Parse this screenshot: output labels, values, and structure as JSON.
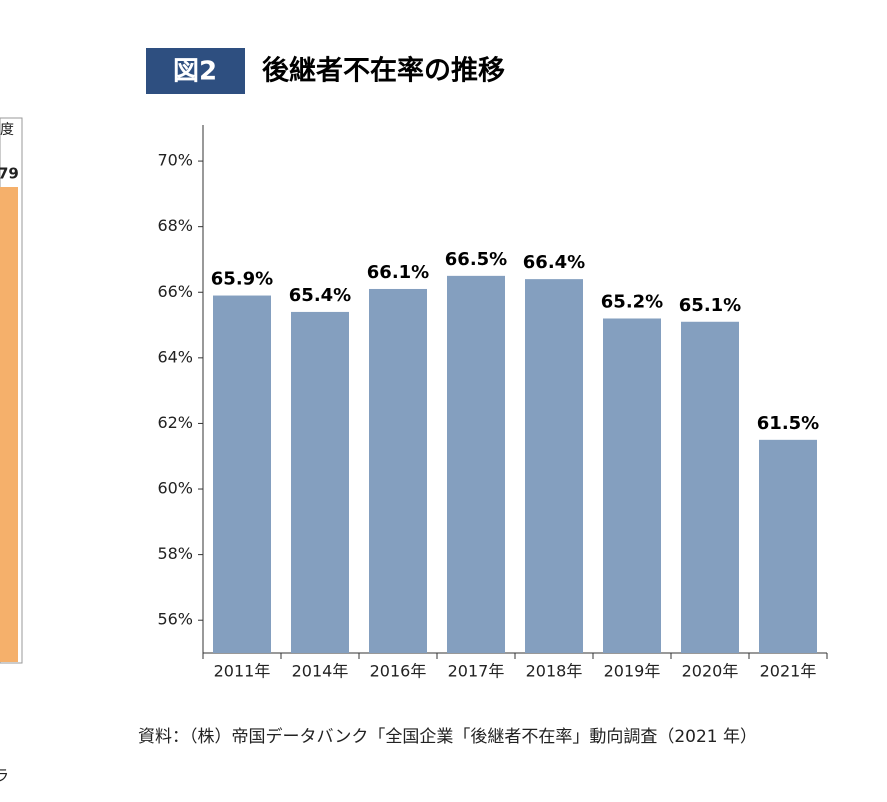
{
  "left_fragment": {
    "header": "度",
    "value": "79",
    "footer": "ラ"
  },
  "chart_data": {
    "type": "bar",
    "figure_label": "図2",
    "title": "後継者不在率の推移",
    "categories": [
      "2011年",
      "2014年",
      "2016年",
      "2017年",
      "2018年",
      "2019年",
      "2020年",
      "2021年"
    ],
    "values": [
      65.9,
      65.4,
      66.1,
      66.5,
      66.4,
      65.2,
      65.1,
      61.5
    ],
    "value_labels": [
      "65.9%",
      "65.4%",
      "66.1%",
      "66.5%",
      "66.4%",
      "65.2%",
      "65.1%",
      "61.5%"
    ],
    "color": "#849fbf",
    "ylim": [
      55,
      71.1
    ],
    "yticks": [
      {
        "value": 56,
        "label": "56%"
      },
      {
        "value": 58,
        "label": "58%"
      },
      {
        "value": 60,
        "label": "60%"
      },
      {
        "value": 62,
        "label": "62%"
      },
      {
        "value": 64,
        "label": "64%"
      },
      {
        "value": 66,
        "label": "66%"
      },
      {
        "value": 68,
        "label": "68%"
      },
      {
        "value": 70,
        "label": "70%"
      }
    ],
    "grid": false,
    "source": "資料：（株）帝国データバンク「全国企業「後継者不在率」動向調査（2021 年）"
  }
}
